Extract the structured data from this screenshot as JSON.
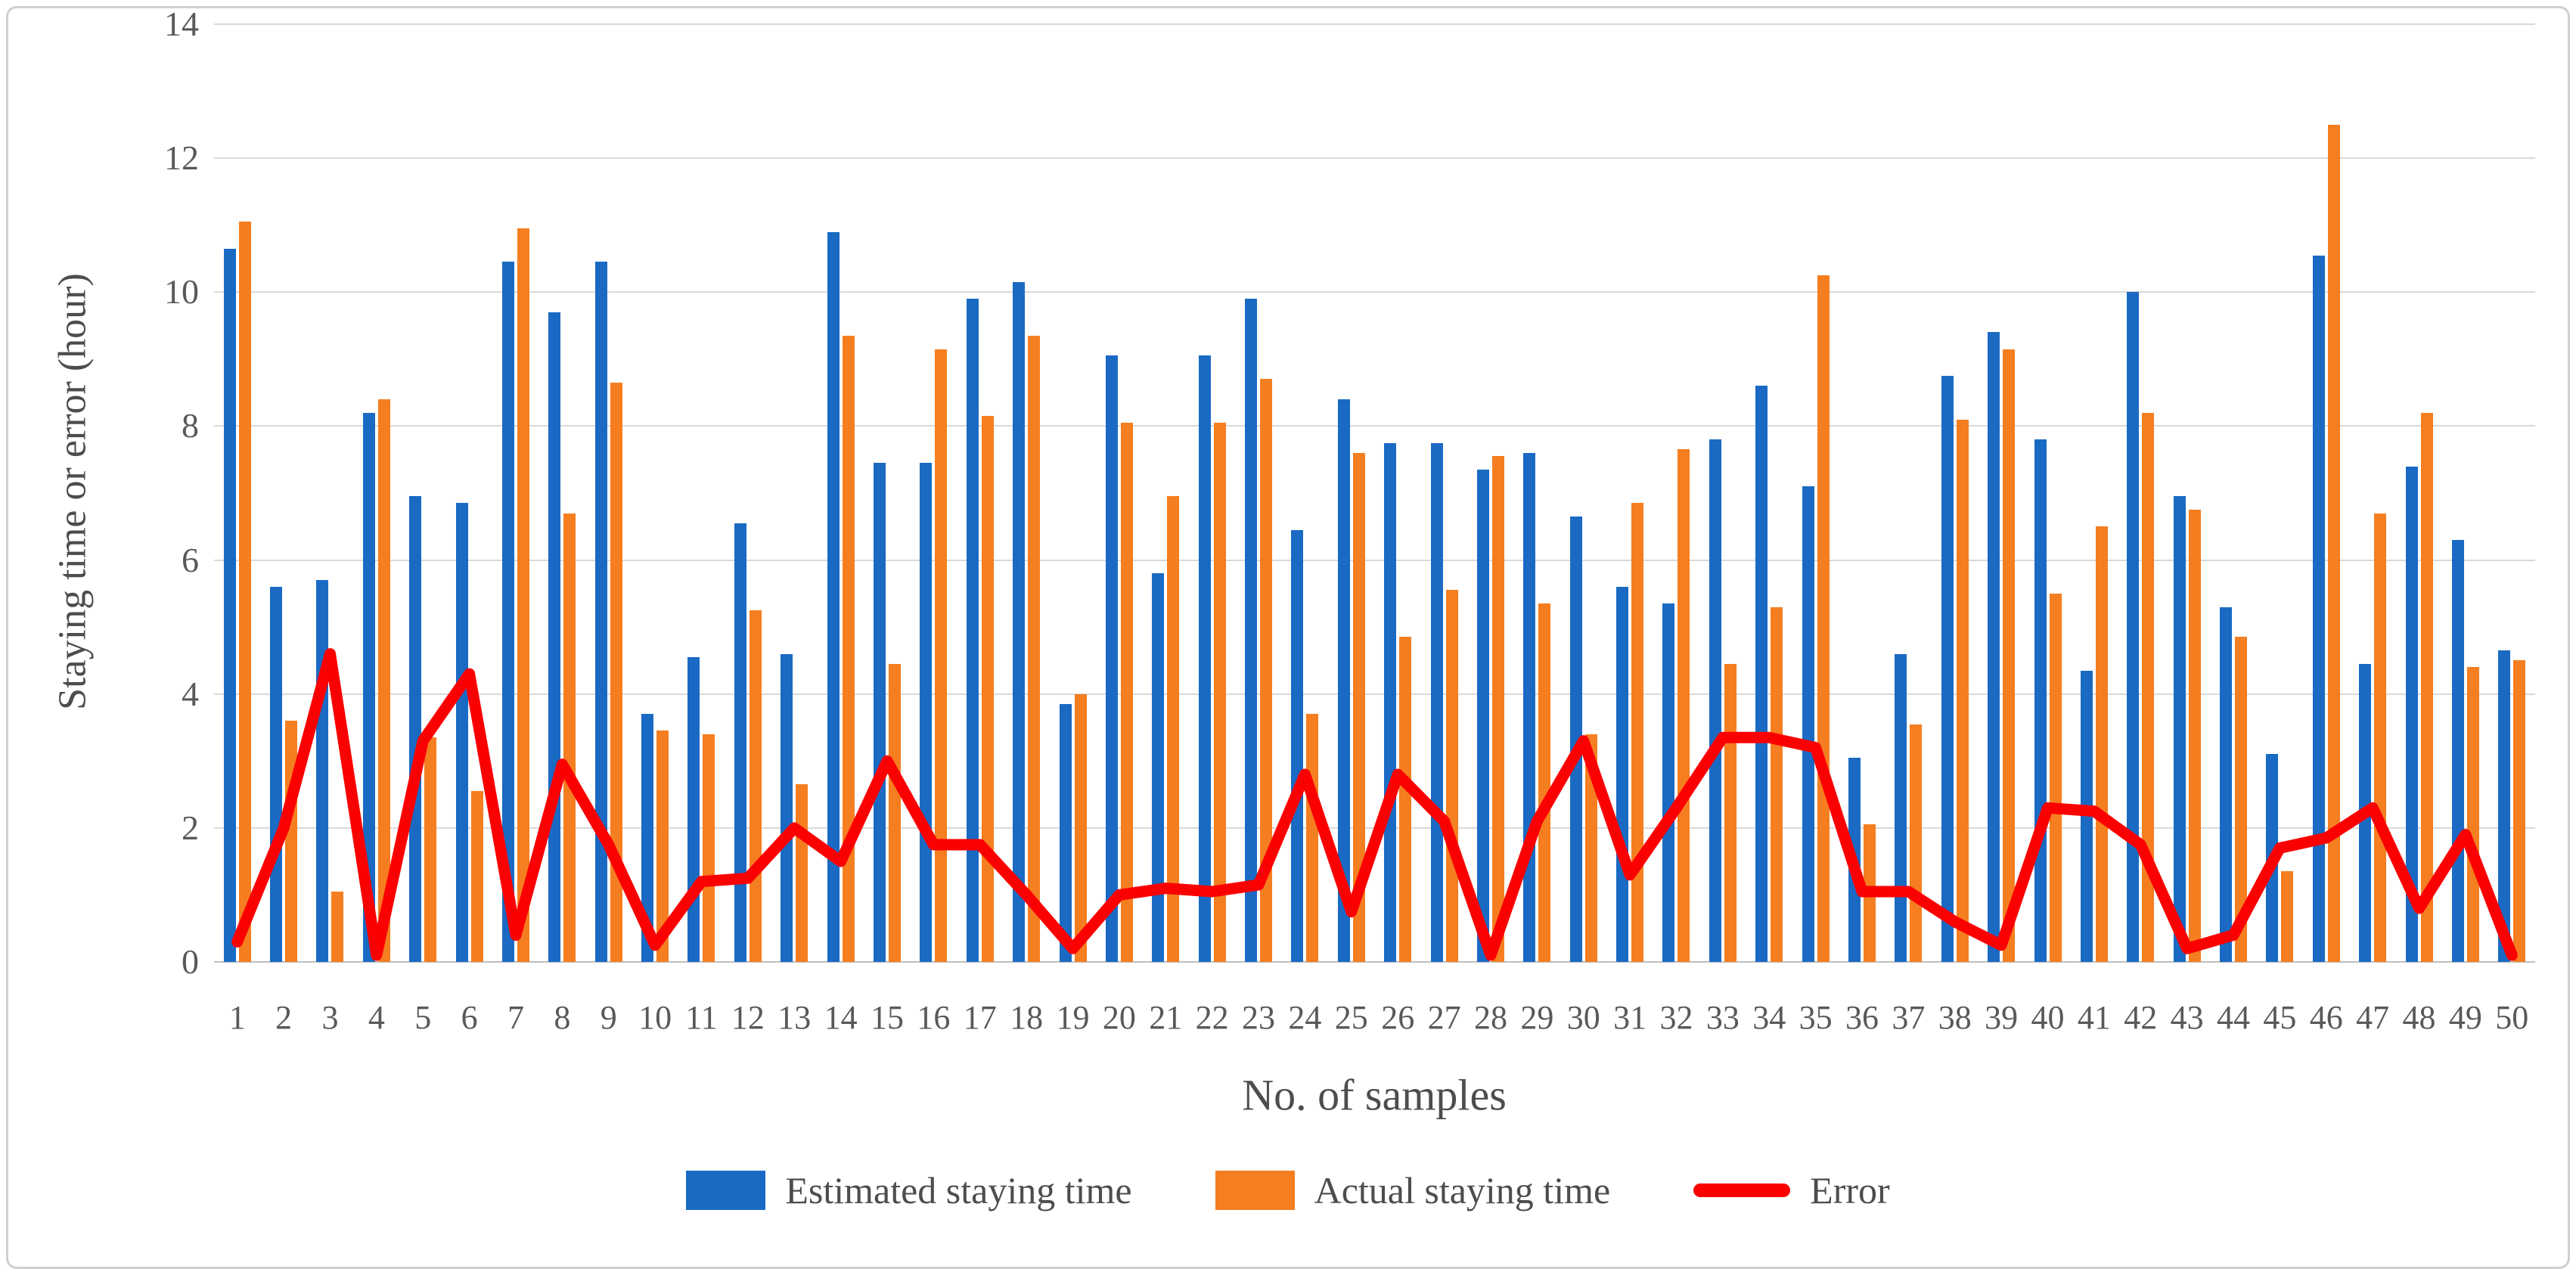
{
  "figure": {
    "y_axis_title": "Staying time or error (hour)",
    "x_axis_title": "No. of samples",
    "y_ticks": [
      0,
      2,
      4,
      6,
      8,
      10,
      12,
      14
    ],
    "colors": {
      "estimated": "#1a6ac4",
      "actual": "#f57e20",
      "error": "#fb0000",
      "gridline": "#d9d9d9",
      "axis_line": "#bfbfbf",
      "tick_text": "#595959"
    }
  },
  "legend": [
    {
      "label": "Estimated staying time",
      "type": "bar",
      "color": "#1a6ac4"
    },
    {
      "label": "Actual staying time",
      "type": "bar",
      "color": "#f57e20"
    },
    {
      "label": "Error",
      "type": "line",
      "color": "#fb0000"
    }
  ],
  "chart_data": {
    "type": "bar",
    "title": "",
    "xlabel": "No. of samples",
    "ylabel": "Staying time or error (hour)",
    "ylim": [
      0,
      14
    ],
    "grid": true,
    "legend_position": "bottom",
    "categories": [
      "1",
      "2",
      "3",
      "4",
      "5",
      "6",
      "7",
      "8",
      "9",
      "10",
      "11",
      "12",
      "13",
      "14",
      "15",
      "16",
      "17",
      "18",
      "19",
      "20",
      "21",
      "22",
      "23",
      "24",
      "25",
      "26",
      "27",
      "28",
      "29",
      "30",
      "31",
      "32",
      "33",
      "34",
      "35",
      "36",
      "37",
      "38",
      "39",
      "40",
      "41",
      "42",
      "43",
      "44",
      "45",
      "46",
      "47",
      "48",
      "49",
      "50"
    ],
    "series": [
      {
        "name": "Estimated staying time",
        "type": "bar",
        "color": "#1a6ac4",
        "values": [
          10.65,
          5.6,
          5.7,
          8.2,
          6.95,
          6.85,
          10.45,
          9.7,
          10.45,
          3.7,
          4.55,
          6.55,
          4.6,
          10.9,
          7.45,
          7.45,
          9.9,
          10.15,
          3.85,
          9.05,
          5.8,
          9.05,
          9.9,
          6.45,
          8.4,
          7.75,
          7.75,
          7.35,
          7.6,
          6.65,
          5.6,
          5.35,
          7.8,
          8.6,
          7.1,
          3.05,
          4.6,
          8.75,
          9.4,
          7.8,
          4.35,
          10.0,
          6.95,
          5.3,
          3.1,
          10.55,
          4.45,
          7.4,
          6.3,
          4.65
        ]
      },
      {
        "name": "Actual staying time",
        "type": "bar",
        "color": "#f57e20",
        "values": [
          11.05,
          3.6,
          1.05,
          8.4,
          3.35,
          2.55,
          10.95,
          6.7,
          8.65,
          3.45,
          3.4,
          5.25,
          2.65,
          9.35,
          4.45,
          9.15,
          8.15,
          9.35,
          4.0,
          8.05,
          6.95,
          8.05,
          8.7,
          3.7,
          7.6,
          4.85,
          5.55,
          7.55,
          5.35,
          3.4,
          6.85,
          7.65,
          4.45,
          5.3,
          10.25,
          2.05,
          3.55,
          8.1,
          9.15,
          5.5,
          6.5,
          8.2,
          6.75,
          4.85,
          1.35,
          12.5,
          6.7,
          8.2,
          4.4,
          4.5
        ]
      },
      {
        "name": "Error",
        "type": "line",
        "color": "#fb0000",
        "values": [
          0.3,
          2.0,
          4.6,
          0.1,
          3.3,
          4.3,
          0.4,
          2.95,
          1.75,
          0.25,
          1.2,
          1.25,
          2.0,
          1.5,
          3.0,
          1.75,
          1.75,
          1.0,
          0.2,
          1.0,
          1.1,
          1.05,
          1.15,
          2.8,
          0.75,
          2.8,
          2.1,
          0.1,
          2.1,
          3.3,
          1.3,
          2.3,
          3.35,
          3.35,
          3.2,
          1.05,
          1.05,
          0.6,
          0.25,
          2.3,
          2.25,
          1.75,
          0.2,
          0.4,
          1.7,
          1.85,
          2.3,
          0.8,
          1.9,
          0.1
        ]
      }
    ]
  }
}
